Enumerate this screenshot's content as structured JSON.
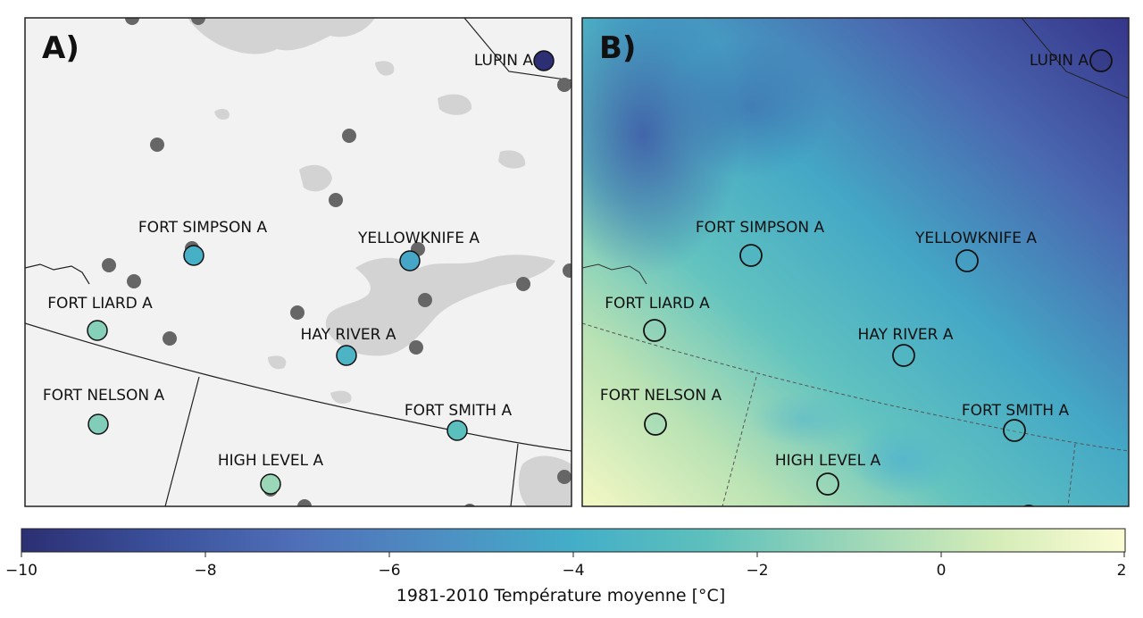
{
  "panels": [
    {
      "letter": "A)"
    },
    {
      "letter": "B)"
    }
  ],
  "stations": [
    {
      "label": "LUPIN A",
      "temp": -10
    },
    {
      "label": "FORT SIMPSON A",
      "temp": -3.8
    },
    {
      "label": "YELLOWKNIFE A",
      "temp": -4.4
    },
    {
      "label": "FORT LIARD A",
      "temp": -1.5
    },
    {
      "label": "HAY RIVER A",
      "temp": -3.5
    },
    {
      "label": "FORT NELSON A",
      "temp": -1.6
    },
    {
      "label": "FORT SMITH A",
      "temp": -2.6
    },
    {
      "label": "HIGH LEVEL A",
      "temp": -1.0
    }
  ],
  "colorbar": {
    "ticks": [
      "−10",
      "−8",
      "−6",
      "−4",
      "−2",
      "0",
      "2"
    ],
    "min": -10,
    "max": 2,
    "title": "1981-2010 Température moyenne [°C]",
    "colormap": [
      "#2c2f73",
      "#3a4f9a",
      "#4f6fb8",
      "#4d8fc3",
      "#43aec8",
      "#5dc0bc",
      "#9ad6b8",
      "#d4ecb8",
      "#fbfcd4"
    ]
  }
}
